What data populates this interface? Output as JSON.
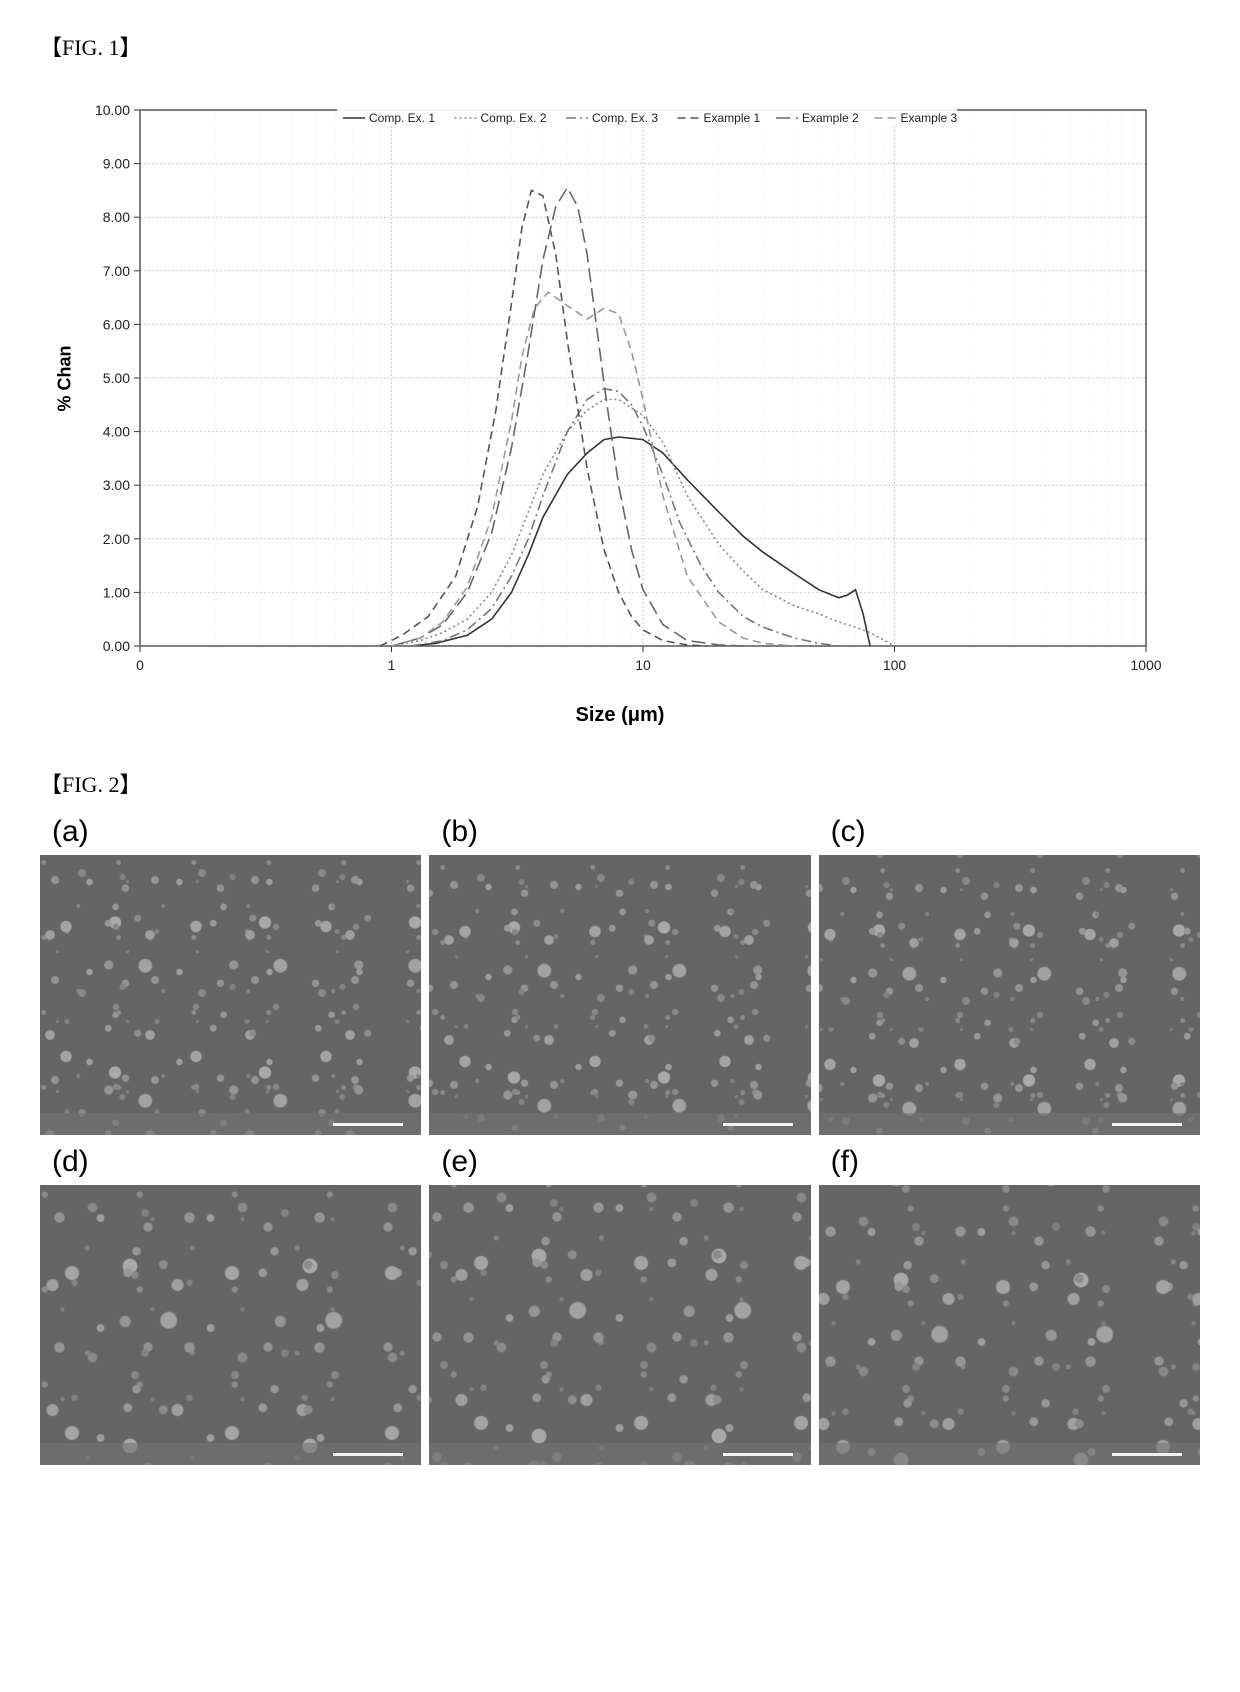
{
  "fig1": {
    "label": "【FIG. 1】",
    "type": "line",
    "xlabel": "Size (μm)",
    "ylabel": "% Chan",
    "xscale": "log",
    "xlim": [
      0.1,
      1000
    ],
    "ylim": [
      0,
      10
    ],
    "xtick_labels": [
      "0",
      "1",
      "10",
      "100",
      "1000"
    ],
    "xtick_positions_log": [
      0.1,
      1,
      10,
      100,
      1000
    ],
    "ytick_step": 1.0,
    "ytick_labels": [
      "0.00",
      "1.00",
      "2.00",
      "3.00",
      "4.00",
      "5.00",
      "6.00",
      "7.00",
      "8.00",
      "9.00",
      "10.00"
    ],
    "grid": true,
    "grid_minor": true,
    "grid_color_major": "#cfcfcf",
    "grid_color_minor": "#e8e8e8",
    "background_color": "#ffffff",
    "plot_border_color": "#555555",
    "label_fontsize": 18,
    "xlabel_fontsize": 20,
    "tick_fontsize": 14,
    "legend_fontsize": 12,
    "legend_position": "top-center",
    "line_width": 1.6,
    "series": [
      {
        "name": "Comp. Ex. 1",
        "color": "#333333",
        "dash": "solid",
        "x": [
          1.2,
          1.5,
          2,
          2.5,
          3,
          3.5,
          4,
          5,
          6,
          7,
          8,
          10,
          12,
          15,
          20,
          25,
          30,
          40,
          50,
          60,
          65,
          70,
          75,
          80
        ],
        "y": [
          0.0,
          0.05,
          0.2,
          0.5,
          1.0,
          1.7,
          2.4,
          3.2,
          3.6,
          3.85,
          3.9,
          3.85,
          3.6,
          3.1,
          2.5,
          2.05,
          1.75,
          1.35,
          1.05,
          0.9,
          0.95,
          1.05,
          0.6,
          0.0
        ]
      },
      {
        "name": "Comp. Ex. 2",
        "color": "#888888",
        "dash": "dot",
        "x": [
          1.0,
          1.3,
          1.6,
          2,
          2.5,
          3,
          3.5,
          4,
          5,
          6,
          7,
          8,
          10,
          12,
          15,
          20,
          25,
          30,
          40,
          50,
          60,
          70,
          80,
          90,
          100
        ],
        "y": [
          0.0,
          0.1,
          0.25,
          0.5,
          1.0,
          1.7,
          2.5,
          3.2,
          4.0,
          4.4,
          4.6,
          4.6,
          4.3,
          3.8,
          2.8,
          1.9,
          1.4,
          1.05,
          0.75,
          0.6,
          0.45,
          0.35,
          0.25,
          0.12,
          0.0
        ]
      },
      {
        "name": "Comp. Ex. 3",
        "color": "#777777",
        "dash": "dashdot",
        "x": [
          1.2,
          1.6,
          2,
          2.5,
          3,
          3.5,
          4,
          5,
          6,
          7,
          8,
          9,
          10,
          12,
          14,
          17,
          20,
          25,
          30,
          40,
          50,
          60
        ],
        "y": [
          0.0,
          0.1,
          0.3,
          0.7,
          1.3,
          2.0,
          2.8,
          4.0,
          4.6,
          4.8,
          4.75,
          4.5,
          4.1,
          3.2,
          2.3,
          1.5,
          1.0,
          0.55,
          0.35,
          0.15,
          0.05,
          0.0
        ]
      },
      {
        "name": "Example 1",
        "color": "#555555",
        "dash": "dash",
        "x": [
          0.9,
          1.1,
          1.4,
          1.8,
          2.2,
          2.6,
          3.0,
          3.3,
          3.6,
          4.0,
          4.5,
          5,
          6,
          7,
          8,
          9,
          10,
          12,
          15,
          18
        ],
        "y": [
          0.0,
          0.2,
          0.55,
          1.3,
          2.6,
          4.4,
          6.4,
          7.8,
          8.5,
          8.4,
          7.3,
          5.7,
          3.3,
          1.8,
          1.0,
          0.55,
          0.3,
          0.1,
          0.02,
          0.0
        ]
      },
      {
        "name": "Example 2",
        "color": "#666666",
        "dash": "longdash",
        "x": [
          1.0,
          1.3,
          1.6,
          2,
          2.5,
          3,
          3.5,
          4,
          4.5,
          5,
          5.5,
          6,
          7,
          8,
          9,
          10,
          12,
          15,
          20,
          25
        ],
        "y": [
          0.0,
          0.15,
          0.4,
          1.0,
          2.1,
          3.7,
          5.5,
          7.2,
          8.2,
          8.55,
          8.2,
          7.3,
          4.9,
          3.0,
          1.8,
          1.05,
          0.4,
          0.1,
          0.02,
          0.0
        ]
      },
      {
        "name": "Example 3",
        "color": "#999999",
        "dash": "dash",
        "x": [
          1.0,
          1.3,
          1.6,
          2,
          2.5,
          3,
          3.3,
          3.7,
          4.2,
          5,
          6,
          7,
          8,
          9,
          10,
          12,
          15,
          20,
          25,
          30,
          40
        ],
        "y": [
          0.0,
          0.15,
          0.45,
          1.1,
          2.4,
          4.2,
          5.4,
          6.3,
          6.6,
          6.35,
          6.1,
          6.3,
          6.2,
          5.5,
          4.6,
          2.8,
          1.3,
          0.45,
          0.15,
          0.05,
          0.0
        ]
      }
    ]
  },
  "fig2": {
    "label": "【FIG. 2】",
    "type": "image-grid",
    "rows": 2,
    "cols": 3,
    "panel_labels": [
      "(a)",
      "(b)",
      "(c)",
      "(d)",
      "(e)",
      "(f)"
    ],
    "label_fontsize": 30,
    "description": "SEM micrographs, grayscale, granular particle morphology",
    "background_color": "#6b6b6b",
    "scalebar_color": "#ffffff"
  }
}
